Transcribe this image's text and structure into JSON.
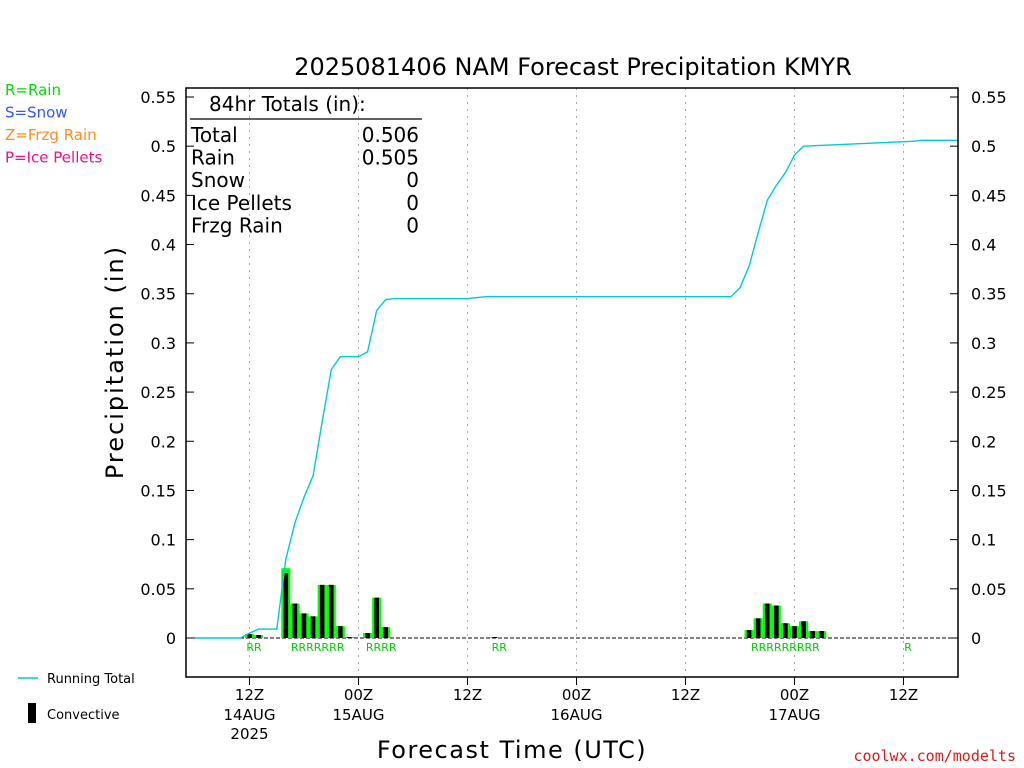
{
  "chart_data": {
    "type": "bar",
    "title": "2025081406 NAM Forecast Precipitation KMYR",
    "ylabel": "Precipitation (in)",
    "xlabel": "Forecast Time (UTC)",
    "ylim": [
      -0.04,
      0.555
    ],
    "yticks": [
      "0",
      "0.05",
      "0.1",
      "0.15",
      "0.2",
      "0.25",
      "0.3",
      "0.35",
      "0.4",
      "0.45",
      "0.5",
      "0.55"
    ],
    "ytick_values": [
      0,
      0.05,
      0.1,
      0.15,
      0.2,
      0.25,
      0.3,
      0.35,
      0.4,
      0.45,
      0.5,
      0.55
    ],
    "x_unit": "forecast hour",
    "xlim": [
      0,
      84
    ],
    "xticks": [
      {
        "hour": 6,
        "label": "12Z",
        "date": "14AUG",
        "year": "2025"
      },
      {
        "hour": 18,
        "label": "00Z",
        "date": "15AUG",
        "year": ""
      },
      {
        "hour": 30,
        "label": "12Z",
        "date": "",
        "year": ""
      },
      {
        "hour": 42,
        "label": "00Z",
        "date": "16AUG",
        "year": ""
      },
      {
        "hour": 54,
        "label": "12Z",
        "date": "",
        "year": ""
      },
      {
        "hour": 66,
        "label": "00Z",
        "date": "17AUG",
        "year": ""
      },
      {
        "hour": 78,
        "label": "12Z",
        "date": "",
        "year": ""
      }
    ],
    "grid": "vertical dotted at x ticks",
    "series": [
      {
        "name": "Running Total",
        "kind": "line",
        "color": "#00cccc",
        "x": [
          0,
          5,
          6,
          7,
          8,
          9,
          10,
          11,
          12,
          13,
          14,
          15,
          16,
          17,
          18,
          19,
          20,
          21,
          22,
          23,
          24,
          25,
          26,
          30,
          32,
          40,
          50,
          56,
          59,
          60,
          61,
          62,
          63,
          64,
          65,
          66,
          67,
          79,
          80,
          84
        ],
        "y": [
          0,
          0,
          0.005,
          0.009,
          0.009,
          0.009,
          0.08,
          0.117,
          0.143,
          0.165,
          0.22,
          0.273,
          0.286,
          0.286,
          0.286,
          0.291,
          0.333,
          0.344,
          0.345,
          0.345,
          0.345,
          0.345,
          0.345,
          0.345,
          0.347,
          0.347,
          0.347,
          0.347,
          0.347,
          0.356,
          0.378,
          0.412,
          0.445,
          0.46,
          0.473,
          0.491,
          0.5,
          0.505,
          0.506,
          0.506
        ]
      }
    ],
    "hourly_precip": {
      "name": "Convective",
      "total_color": "#00ff00",
      "convective_color": "#000000",
      "x": [
        6,
        7,
        10,
        11,
        12,
        13,
        14,
        15,
        16,
        17,
        19,
        20,
        21,
        33,
        61,
        62,
        63,
        64,
        65,
        66,
        67,
        68,
        69
      ],
      "total": [
        0.004,
        0.003,
        0.071,
        0.035,
        0.025,
        0.022,
        0.054,
        0.054,
        0.012,
        0.001,
        0.005,
        0.041,
        0.011,
        0.001,
        0.008,
        0.02,
        0.035,
        0.033,
        0.015,
        0.012,
        0.017,
        0.007,
        0.007
      ],
      "convective": [
        0.004,
        0.003,
        0.066,
        0.035,
        0.025,
        0.022,
        0.054,
        0.054,
        0.012,
        0.001,
        0.005,
        0.041,
        0.011,
        0.001,
        0.008,
        0.02,
        0.035,
        0.033,
        0.015,
        0.012,
        0.017,
        0.007,
        0.007
      ]
    },
    "precip_type_labels": [
      {
        "hour": 6.5,
        "text": "RR"
      },
      {
        "hour": 13.5,
        "text": "RRRRRRR"
      },
      {
        "hour": 20.5,
        "text": "RRRR"
      },
      {
        "hour": 33.5,
        "text": "RR"
      },
      {
        "hour": 65,
        "text": "RRRRRRRRR"
      },
      {
        "hour": 78.5,
        "text": "R"
      }
    ]
  },
  "type_legend": [
    {
      "text": "R=Rain",
      "color": "#00dd00"
    },
    {
      "text": "S=Snow",
      "color": "#3355ff"
    },
    {
      "text": "Z=Frzg Rain",
      "color": "#ff8c1a"
    },
    {
      "text": "P=Ice Pellets",
      "color": "#ee1188"
    }
  ],
  "totals_box": {
    "header": "84hr Totals (in):",
    "rows": [
      {
        "label": "Total",
        "value": "0.506"
      },
      {
        "label": "Rain",
        "value": "0.505"
      },
      {
        "label": "Snow",
        "value": "0"
      },
      {
        "label": "Ice Pellets",
        "value": "0"
      },
      {
        "label": "Frzg Rain",
        "value": "0"
      }
    ]
  },
  "series_legend": {
    "running_total": "Running Total",
    "convective": "Convective"
  },
  "credit": "coolwx.com/modelts"
}
